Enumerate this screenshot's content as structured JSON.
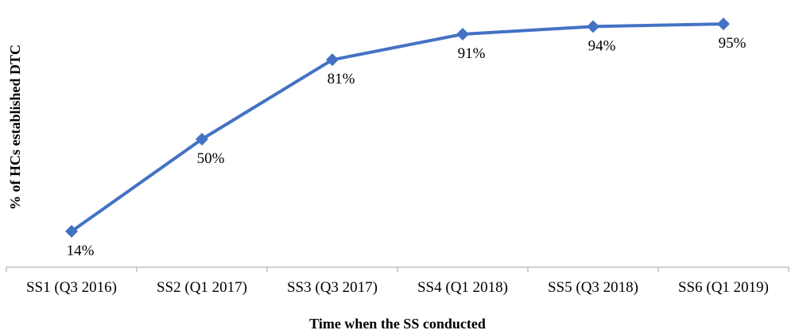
{
  "chart_data": {
    "type": "line",
    "title": "",
    "xlabel": "Time when the SS conducted",
    "ylabel": "% of HCs established DTC",
    "categories": [
      "SS1 (Q3 2016)",
      "SS2 (Q1 2017)",
      "SS3 (Q3 2017)",
      "SS4 (Q1 2018)",
      "SS5 (Q3 2018)",
      "SS6 (Q1 2019)"
    ],
    "series": [
      {
        "values": [
          14,
          50,
          81,
          91,
          94,
          95
        ],
        "data_labels": [
          "14%",
          "50%",
          "81%",
          "91%",
          "94%",
          "95%"
        ],
        "color": "#4472C4",
        "marker": "diamond"
      }
    ],
    "ylim": [
      0,
      100
    ],
    "grid": false,
    "legend": "none",
    "axis_color": "#BFBFBF"
  }
}
